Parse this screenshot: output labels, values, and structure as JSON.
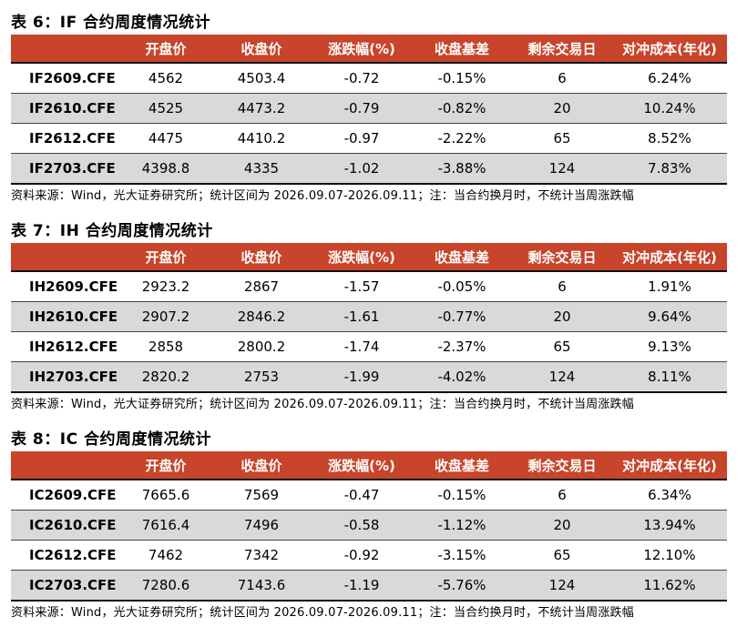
{
  "headers": [
    "",
    "开盘价",
    "收盘价",
    "涨跌幅(%)",
    "收盘基差",
    "剩余交易日",
    "对冲成本(年化)"
  ],
  "tables": [
    {
      "title": "表 6：IF 合约周度情况统计",
      "rows": [
        [
          "IF2609.CFE",
          "4562",
          "4503.4",
          "-0.72",
          "-0.15%",
          "6",
          "6.24%"
        ],
        [
          "IF2610.CFE",
          "4525",
          "4473.2",
          "-0.79",
          "-0.82%",
          "20",
          "10.24%"
        ],
        [
          "IF2612.CFE",
          "4475",
          "4410.2",
          "-0.97",
          "-2.22%",
          "65",
          "8.52%"
        ],
        [
          "IF2703.CFE",
          "4398.8",
          "4335",
          "-1.02",
          "-3.88%",
          "124",
          "7.83%"
        ]
      ],
      "source": "资料来源：Wind，光大证券研究所；统计区间为 2026.09.07-2026.09.11；注：当合约换月时，不统计当周涨跌幅"
    },
    {
      "title": "表 7：IH 合约周度情况统计",
      "rows": [
        [
          "IH2609.CFE",
          "2923.2",
          "2867",
          "-1.57",
          "-0.05%",
          "6",
          "1.91%"
        ],
        [
          "IH2610.CFE",
          "2907.2",
          "2846.2",
          "-1.61",
          "-0.77%",
          "20",
          "9.64%"
        ],
        [
          "IH2612.CFE",
          "2858",
          "2800.2",
          "-1.74",
          "-2.37%",
          "65",
          "9.13%"
        ],
        [
          "IH2703.CFE",
          "2820.2",
          "2753",
          "-1.99",
          "-4.02%",
          "124",
          "8.11%"
        ]
      ],
      "source": "资料来源：Wind，光大证券研究所；统计区间为 2026.09.07-2026.09.11；注：当合约换月时，不统计当周涨跌幅"
    },
    {
      "title": "表 8：IC 合约周度情况统计",
      "rows": [
        [
          "IC2609.CFE",
          "7665.6",
          "7569",
          "-0.47",
          "-0.15%",
          "6",
          "6.34%"
        ],
        [
          "IC2610.CFE",
          "7616.4",
          "7496",
          "-0.58",
          "-1.12%",
          "20",
          "13.94%"
        ],
        [
          "IC2612.CFE",
          "7462",
          "7342",
          "-0.92",
          "-3.15%",
          "65",
          "12.10%"
        ],
        [
          "IC2703.CFE",
          "7280.6",
          "7143.6",
          "-1.19",
          "-5.76%",
          "124",
          "11.62%"
        ]
      ],
      "source": "资料来源：Wind，光大证券研究所；统计区间为 2026.09.07-2026.09.11；注：当合约换月时，不统计当周涨跌幅"
    }
  ],
  "colors": {
    "header_bg": "#c8442a",
    "alt_row_bg": "#d9d9d9"
  }
}
